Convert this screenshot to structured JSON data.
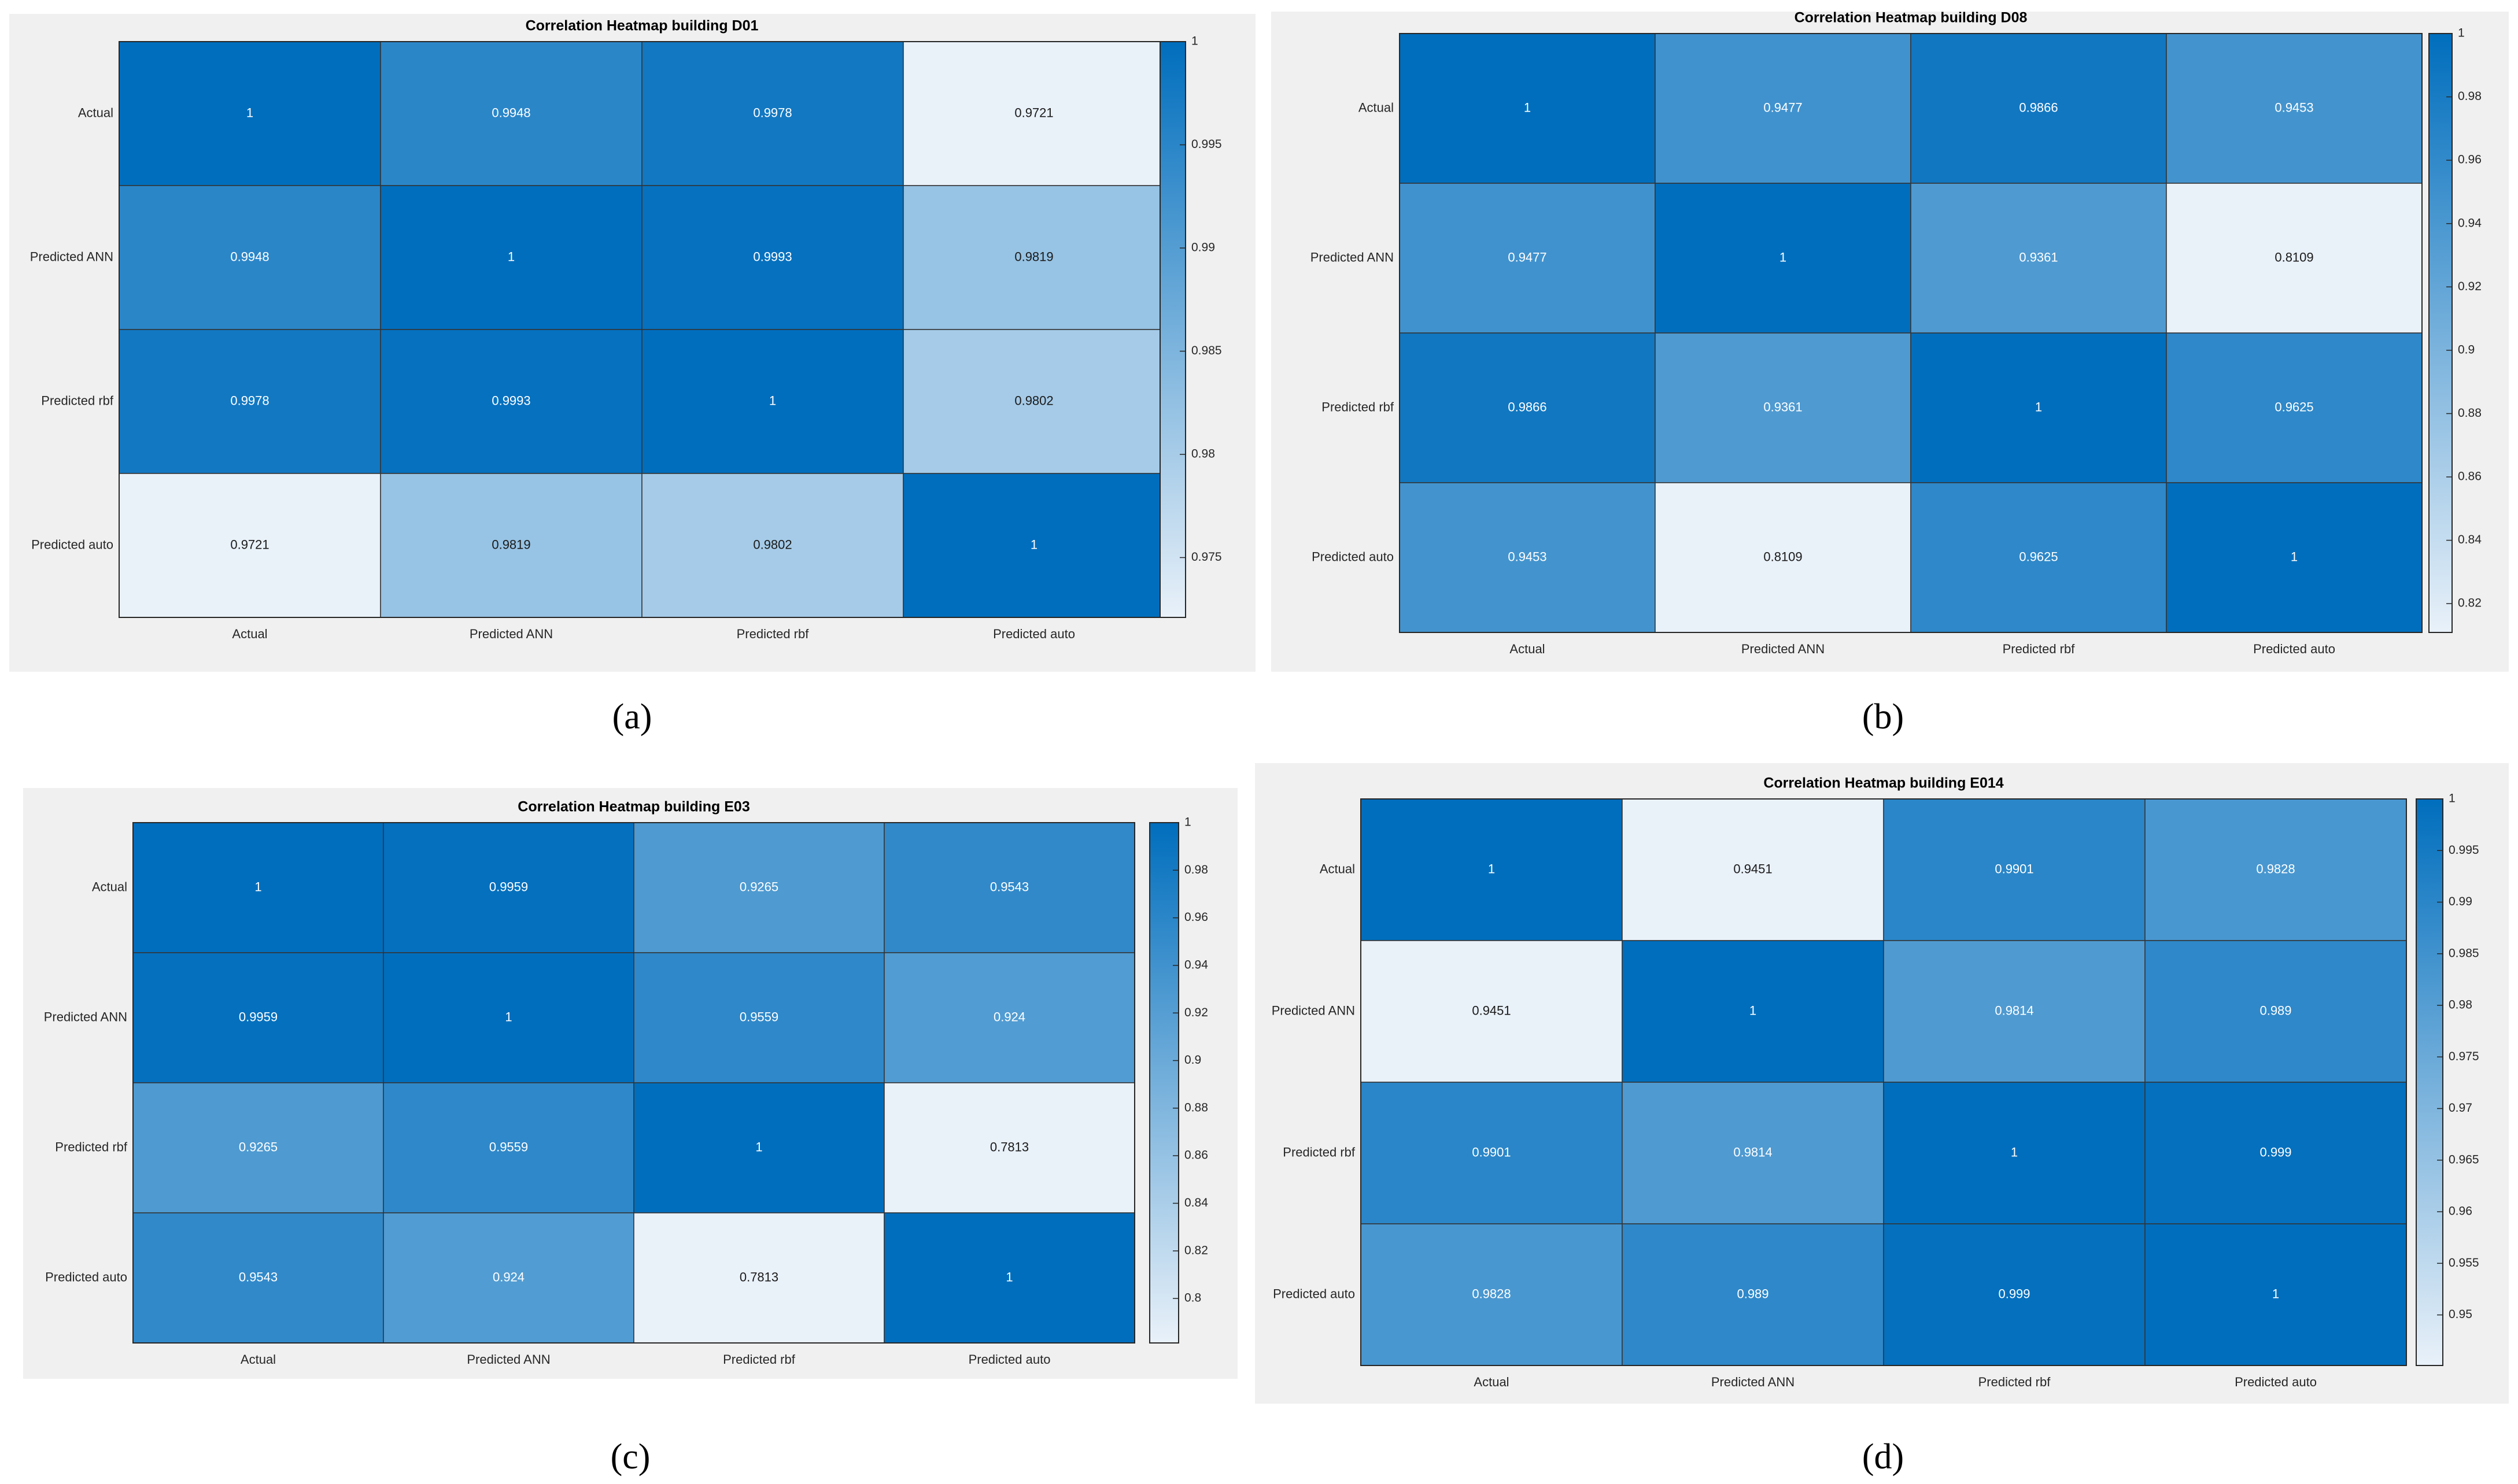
{
  "colorscale": {
    "low": "#e9f1f9",
    "high": "#006ebd"
  },
  "charts": [
    {
      "caption": "(a)",
      "chart_data": {
        "type": "heatmap",
        "title": "Correlation Heatmap building D01",
        "x_labels": [
          "Actual",
          "Predicted ANN",
          "Predicted rbf",
          "Predicted auto"
        ],
        "y_labels": [
          "Actual",
          "Predicted ANN",
          "Predicted rbf",
          "Predicted auto"
        ],
        "values": [
          [
            1,
            0.9948,
            0.9978,
            0.9721
          ],
          [
            0.9948,
            1,
            0.9993,
            0.9819
          ],
          [
            0.9978,
            0.9993,
            1,
            0.9802
          ],
          [
            0.9721,
            0.9819,
            0.9802,
            1
          ]
        ],
        "labels": [
          [
            "1",
            "0.9948",
            "0.9978",
            "0.9721"
          ],
          [
            "0.9948",
            "1",
            "0.9993",
            "0.9819"
          ],
          [
            "0.9978",
            "0.9993",
            "1",
            "0.9802"
          ],
          [
            "0.9721",
            "0.9819",
            "0.9802",
            "1"
          ]
        ],
        "colorbar_range": [
          0.9721,
          1
        ],
        "colorbar_ticks": [
          "1",
          "0.995",
          "0.99",
          "0.985",
          "0.98",
          "0.975"
        ]
      }
    },
    {
      "caption": "(b)",
      "chart_data": {
        "type": "heatmap",
        "title": "Correlation Heatmap building D08",
        "x_labels": [
          "Actual",
          "Predicted ANN",
          "Predicted rbf",
          "Predicted auto"
        ],
        "y_labels": [
          "Actual",
          "Predicted ANN",
          "Predicted rbf",
          "Predicted auto"
        ],
        "values": [
          [
            1,
            0.9477,
            0.9866,
            0.9453
          ],
          [
            0.9477,
            1,
            0.9361,
            0.8109
          ],
          [
            0.9866,
            0.9361,
            1,
            0.9625
          ],
          [
            0.9453,
            0.8109,
            0.9625,
            1
          ]
        ],
        "labels": [
          [
            "1",
            "0.9477",
            "0.9866",
            "0.9453"
          ],
          [
            "0.9477",
            "1",
            "0.9361",
            "0.8109"
          ],
          [
            "0.9866",
            "0.9361",
            "1",
            "0.9625"
          ],
          [
            "0.9453",
            "0.8109",
            "0.9625",
            "1"
          ]
        ],
        "colorbar_range": [
          0.8109,
          1
        ],
        "colorbar_ticks": [
          "1",
          "0.98",
          "0.96",
          "0.94",
          "0.92",
          "0.9",
          "0.88",
          "0.86",
          "0.84",
          "0.82"
        ]
      }
    },
    {
      "caption": "(c)",
      "chart_data": {
        "type": "heatmap",
        "title": "Correlation Heatmap building E03",
        "x_labels": [
          "Actual",
          "Predicted ANN",
          "Predicted rbf",
          "Predicted auto"
        ],
        "y_labels": [
          "Actual",
          "Predicted ANN",
          "Predicted rbf",
          "Predicted auto"
        ],
        "values": [
          [
            1,
            0.9959,
            0.9265,
            0.9543
          ],
          [
            0.9959,
            1,
            0.9559,
            0.924
          ],
          [
            0.9265,
            0.9559,
            1,
            0.7813
          ],
          [
            0.9543,
            0.924,
            0.7813,
            1
          ]
        ],
        "labels": [
          [
            "1",
            "0.9959",
            "0.9265",
            "0.9543"
          ],
          [
            "0.9959",
            "1",
            "0.9559",
            "0.924"
          ],
          [
            "0.9265",
            "0.9559",
            "1",
            "0.7813"
          ],
          [
            "0.9543",
            "0.924",
            "0.7813",
            "1"
          ]
        ],
        "colorbar_range": [
          0.7813,
          1
        ],
        "colorbar_ticks": [
          "1",
          "0.98",
          "0.96",
          "0.94",
          "0.92",
          "0.9",
          "0.88",
          "0.86",
          "0.84",
          "0.82",
          "0.8"
        ]
      }
    },
    {
      "caption": "(d)",
      "chart_data": {
        "type": "heatmap",
        "title": "Correlation Heatmap building E014",
        "x_labels": [
          "Actual",
          "Predicted ANN",
          "Predicted rbf",
          "Predicted auto"
        ],
        "y_labels": [
          "Actual",
          "Predicted ANN",
          "Predicted rbf",
          "Predicted auto"
        ],
        "values": [
          [
            1,
            0.9451,
            0.9901,
            0.9828
          ],
          [
            0.9451,
            1,
            0.9814,
            0.989
          ],
          [
            0.9901,
            0.9814,
            1,
            0.999
          ],
          [
            0.9828,
            0.989,
            0.999,
            1
          ]
        ],
        "labels": [
          [
            "1",
            "0.9451",
            "0.9901",
            "0.9828"
          ],
          [
            "0.9451",
            "1",
            "0.9814",
            "0.989"
          ],
          [
            "0.9901",
            "0.9814",
            "1",
            "0.999"
          ],
          [
            "0.9828",
            "0.989",
            "0.999",
            "1"
          ]
        ],
        "colorbar_range": [
          0.9451,
          1
        ],
        "colorbar_ticks": [
          "1",
          "0.995",
          "0.99",
          "0.985",
          "0.98",
          "0.975",
          "0.97",
          "0.965",
          "0.96",
          "0.955",
          "0.95"
        ]
      }
    }
  ]
}
